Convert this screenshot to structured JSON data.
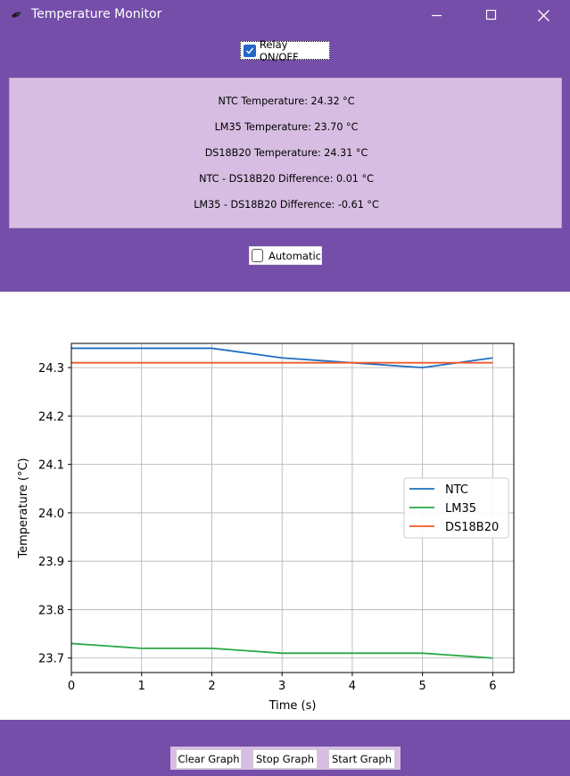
{
  "window": {
    "title": "Temperature Monitor",
    "icon": "feather-icon"
  },
  "controls": {
    "relay_label": "Relay ON/OFF",
    "relay_checked": true,
    "automatic_label": "Automatic",
    "automatic_checked": false
  },
  "readings": [
    "NTC Temperature: 24.32 °C",
    "LM35 Temperature: 23.70 °C",
    "DS18B20 Temperature: 24.31 °C",
    "NTC - DS18B20 Difference: 0.01 °C",
    "LM35 - DS18B20 Difference: -0.61 °C"
  ],
  "buttons": {
    "clear": "Clear Graph",
    "stop": "Stop Graph",
    "start": "Start Graph"
  },
  "colors": {
    "background": "#744ea8",
    "panel": "#d7bde2",
    "ntc": "#1f6fc0",
    "lm35": "#2aa84a",
    "ds18b20": "#f05a28"
  },
  "chart_data": {
    "type": "line",
    "xlabel": "Time (s)",
    "ylabel": "Temperature (°C)",
    "x": [
      0,
      1,
      2,
      3,
      4,
      5,
      6
    ],
    "xticks": [
      "0",
      "1",
      "2",
      "3",
      "4",
      "5",
      "6"
    ],
    "yticks": [
      "23.7",
      "23.8",
      "23.9",
      "24.0",
      "24.1",
      "24.2",
      "24.3"
    ],
    "xlim": [
      0,
      6.3
    ],
    "ylim": [
      23.67,
      24.35
    ],
    "grid": true,
    "legend_position": "center-right",
    "series": [
      {
        "name": "NTC",
        "color": "#1f6fc0",
        "values": [
          24.34,
          24.34,
          24.34,
          24.32,
          24.31,
          24.3,
          24.32
        ]
      },
      {
        "name": "LM35",
        "color": "#2aa84a",
        "values": [
          23.73,
          23.72,
          23.72,
          23.71,
          23.71,
          23.71,
          23.7
        ]
      },
      {
        "name": "DS18B20",
        "color": "#f05a28",
        "values": [
          24.31,
          24.31,
          24.31,
          24.31,
          24.31,
          24.31,
          24.31
        ]
      }
    ]
  }
}
